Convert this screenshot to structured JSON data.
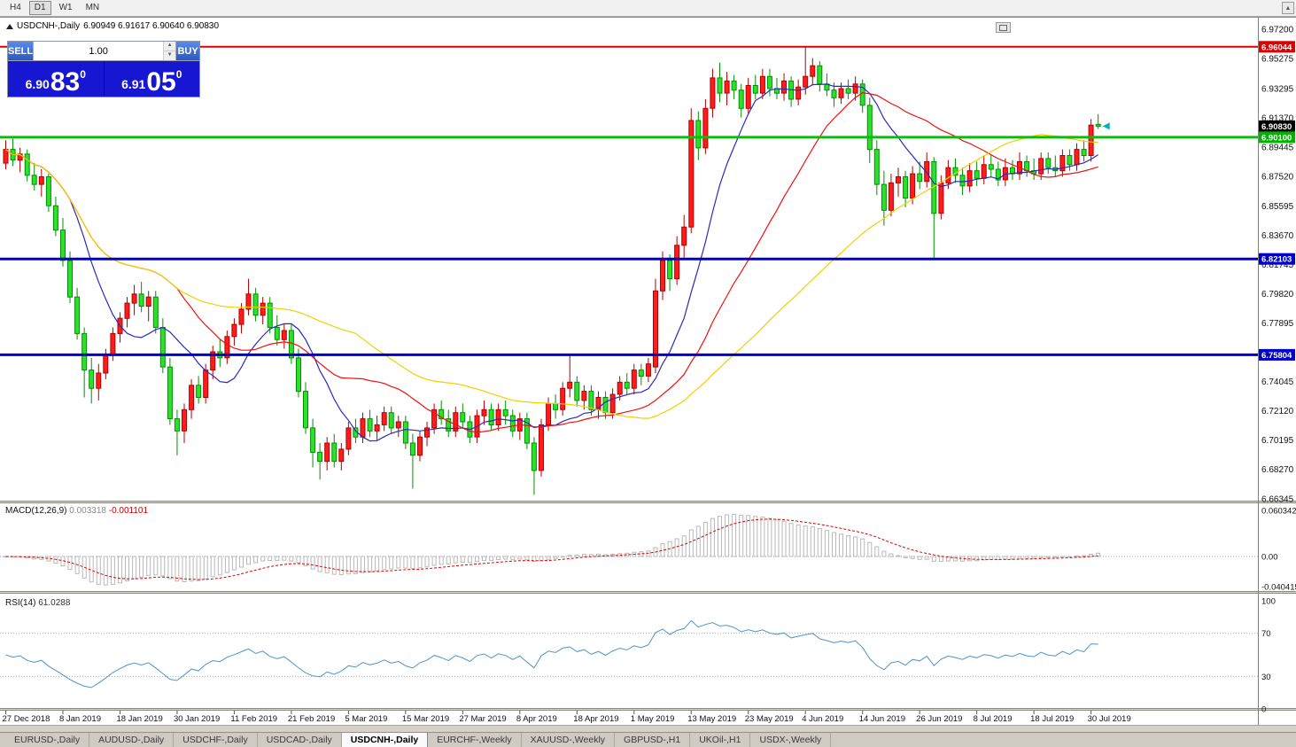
{
  "icons": {
    "scroll_up": "▲",
    "spinner_up": "▲",
    "spinner_down": "▼"
  },
  "toolbar": {
    "timeframes": [
      {
        "label": "H4",
        "active": false
      },
      {
        "label": "D1",
        "active": true
      },
      {
        "label": "W1",
        "active": false
      },
      {
        "label": "MN",
        "active": false
      }
    ]
  },
  "chart_window": {
    "title_symbol": "USDCNH-,Daily",
    "title_ohlc": "6.90949 6.91617 6.90640 6.90830"
  },
  "one_click": {
    "sell_label": "SELL",
    "buy_label": "BUY",
    "volume": "1.00",
    "sell_price": {
      "base": "6.90",
      "big": "83",
      "sup": "0"
    },
    "buy_price": {
      "base": "6.91",
      "big": "05",
      "sup": "0"
    }
  },
  "price_tags": [
    {
      "value": "6.96044",
      "color": "#dd0000"
    },
    {
      "value": "6.90830",
      "color": "#000000"
    },
    {
      "value": "6.90100",
      "color": "#00b300"
    },
    {
      "value": "6.82103",
      "color": "#0000cc"
    },
    {
      "value": "6.75804",
      "color": "#0000cc"
    }
  ],
  "chart_data": {
    "type": "candlestick",
    "symbol": "USDCNH",
    "period": "Daily",
    "ylim": [
      6.66345,
      6.972
    ],
    "up_color": "#ff1c1c",
    "down_color": "#2ee02e",
    "up_border": "#b00000",
    "down_border": "#009000",
    "y_axis_ticks": [
      "6.97200",
      "6.95275",
      "6.93295",
      "6.91370",
      "6.89445",
      "6.87520",
      "6.85595",
      "6.83670",
      "6.81745",
      "6.79820",
      "6.77895",
      "6.75970",
      "6.74045",
      "6.72120",
      "6.70195",
      "6.68270",
      "6.66345"
    ],
    "x_labels": [
      "27 Dec 2018",
      "8 Jan 2019",
      "18 Jan 2019",
      "30 Jan 2019",
      "11 Feb 2019",
      "21 Feb 2019",
      "5 Mar 2019",
      "15 Mar 2019",
      "27 Mar 2019",
      "8 Apr 2019",
      "18 Apr 2019",
      "1 May 2019",
      "13 May 2019",
      "23 May 2019",
      "4 Jun 2019",
      "14 Jun 2019",
      "26 Jun 2019",
      "8 Jul 2019",
      "18 Jul 2019",
      "30 Jul 2019"
    ],
    "x_label_step": 8,
    "hlines": [
      {
        "price": 6.96044,
        "color": "#dd0000",
        "width": 2
      },
      {
        "price": 6.901,
        "color": "#00c400",
        "width": 3
      },
      {
        "price": 6.82103,
        "color": "#0000cc",
        "width": 3
      },
      {
        "price": 6.75804,
        "color": "#0000cc",
        "width": 3
      }
    ],
    "current_price": 6.9083,
    "moving_averages": [
      {
        "period": 10,
        "color": "#2a2ac0"
      },
      {
        "period": 25,
        "color": "#ee1111"
      },
      {
        "period": 50,
        "color": "#f2d000"
      }
    ],
    "macd": {
      "label": "MACD(12,26,9)",
      "value": "0.003318",
      "signal_value": "-0.001101",
      "fast": 12,
      "slow": 26,
      "signal": 9,
      "axis_labels": [
        "0.060342",
        "0.00",
        "-0.040415"
      ],
      "histogram_color": "#b9b9b9",
      "signal_color": "#dd0000"
    },
    "rsi": {
      "label": "RSI(14)",
      "value": "61.0288",
      "period": 14,
      "levels": [
        70,
        30
      ],
      "axis_labels": [
        "100",
        "70",
        "30",
        "0"
      ],
      "line_color": "#4f94cd"
    },
    "candles_ohlc": [
      [
        6.884,
        6.899,
        6.88,
        6.893
      ],
      [
        6.893,
        6.9,
        6.882,
        6.886
      ],
      [
        6.886,
        6.894,
        6.878,
        6.89
      ],
      [
        6.89,
        6.893,
        6.872,
        6.876
      ],
      [
        6.876,
        6.884,
        6.866,
        6.87
      ],
      [
        6.87,
        6.88,
        6.862,
        6.875
      ],
      [
        6.875,
        6.877,
        6.852,
        6.856
      ],
      [
        6.856,
        6.862,
        6.836,
        6.84
      ],
      [
        6.84,
        6.848,
        6.816,
        6.82
      ],
      [
        6.82,
        6.826,
        6.792,
        6.796
      ],
      [
        6.796,
        6.802,
        6.768,
        6.772
      ],
      [
        6.772,
        6.776,
        6.73,
        6.748
      ],
      [
        6.748,
        6.756,
        6.726,
        6.736
      ],
      [
        6.736,
        6.752,
        6.728,
        6.746
      ],
      [
        6.746,
        6.762,
        6.742,
        6.758
      ],
      [
        6.758,
        6.776,
        6.754,
        6.772
      ],
      [
        6.772,
        6.786,
        6.766,
        6.782
      ],
      [
        6.782,
        6.796,
        6.776,
        6.792
      ],
      [
        6.792,
        6.804,
        6.784,
        6.798
      ],
      [
        6.798,
        6.806,
        6.786,
        6.79
      ],
      [
        6.79,
        6.8,
        6.78,
        6.796
      ],
      [
        6.796,
        6.8,
        6.772,
        6.776
      ],
      [
        6.776,
        6.782,
        6.746,
        6.75
      ],
      [
        6.75,
        6.756,
        6.712,
        6.716
      ],
      [
        6.716,
        6.722,
        6.692,
        6.708
      ],
      [
        6.708,
        6.726,
        6.7,
        6.722
      ],
      [
        6.722,
        6.742,
        6.716,
        6.738
      ],
      [
        6.738,
        6.744,
        6.726,
        6.73
      ],
      [
        6.73,
        6.752,
        6.726,
        6.748
      ],
      [
        6.748,
        6.764,
        6.742,
        6.76
      ],
      [
        6.76,
        6.768,
        6.75,
        6.756
      ],
      [
        6.756,
        6.774,
        6.752,
        6.77
      ],
      [
        6.77,
        6.782,
        6.764,
        6.778
      ],
      [
        6.778,
        6.792,
        6.772,
        6.788
      ],
      [
        6.788,
        6.808,
        6.784,
        6.798
      ],
      [
        6.798,
        6.802,
        6.78,
        6.784
      ],
      [
        6.784,
        6.796,
        6.778,
        6.792
      ],
      [
        6.792,
        6.796,
        6.772,
        6.776
      ],
      [
        6.776,
        6.784,
        6.764,
        6.768
      ],
      [
        6.768,
        6.778,
        6.762,
        6.774
      ],
      [
        6.774,
        6.778,
        6.752,
        6.756
      ],
      [
        6.756,
        6.762,
        6.73,
        6.734
      ],
      [
        6.734,
        6.74,
        6.706,
        6.71
      ],
      [
        6.71,
        6.716,
        6.684,
        6.694
      ],
      [
        6.694,
        6.7,
        6.676,
        6.688
      ],
      [
        6.688,
        6.704,
        6.682,
        6.7
      ],
      [
        6.7,
        6.706,
        6.684,
        6.688
      ],
      [
        6.688,
        6.7,
        6.682,
        6.696
      ],
      [
        6.696,
        6.714,
        6.692,
        6.71
      ],
      [
        6.71,
        6.716,
        6.7,
        6.704
      ],
      [
        6.704,
        6.72,
        6.7,
        6.716
      ],
      [
        6.716,
        6.722,
        6.704,
        6.708
      ],
      [
        6.708,
        6.718,
        6.702,
        6.712
      ],
      [
        6.712,
        6.724,
        6.708,
        6.72
      ],
      [
        6.72,
        6.724,
        6.706,
        6.71
      ],
      [
        6.71,
        6.718,
        6.704,
        6.714
      ],
      [
        6.714,
        6.718,
        6.696,
        6.7
      ],
      [
        6.7,
        6.706,
        6.67,
        6.692
      ],
      [
        6.692,
        6.708,
        6.688,
        6.704
      ],
      [
        6.704,
        6.714,
        6.698,
        6.71
      ],
      [
        6.71,
        6.726,
        6.706,
        6.722
      ],
      [
        6.722,
        6.728,
        6.712,
        6.716
      ],
      [
        6.716,
        6.722,
        6.704,
        6.708
      ],
      [
        6.708,
        6.724,
        6.704,
        6.72
      ],
      [
        6.72,
        6.726,
        6.71,
        6.714
      ],
      [
        6.714,
        6.718,
        6.7,
        6.704
      ],
      [
        6.704,
        6.722,
        6.7,
        6.718
      ],
      [
        6.718,
        6.728,
        6.712,
        6.722
      ],
      [
        6.722,
        6.726,
        6.708,
        6.712
      ],
      [
        6.712,
        6.726,
        6.708,
        6.722
      ],
      [
        6.722,
        6.728,
        6.712,
        6.718
      ],
      [
        6.718,
        6.722,
        6.704,
        6.708
      ],
      [
        6.708,
        6.72,
        6.702,
        6.716
      ],
      [
        6.716,
        6.72,
        6.696,
        6.7
      ],
      [
        6.7,
        6.704,
        6.666,
        6.682
      ],
      [
        6.682,
        6.716,
        6.678,
        6.712
      ],
      [
        6.712,
        6.73,
        6.708,
        6.726
      ],
      [
        6.726,
        6.732,
        6.716,
        6.722
      ],
      [
        6.722,
        6.74,
        6.718,
        6.736
      ],
      [
        6.736,
        6.758,
        6.73,
        6.74
      ],
      [
        6.74,
        6.744,
        6.724,
        6.728
      ],
      [
        6.728,
        6.738,
        6.722,
        6.734
      ],
      [
        6.734,
        6.738,
        6.718,
        6.722
      ],
      [
        6.722,
        6.734,
        6.716,
        6.73
      ],
      [
        6.73,
        6.734,
        6.716,
        6.72
      ],
      [
        6.72,
        6.736,
        6.716,
        6.732
      ],
      [
        6.732,
        6.744,
        6.728,
        6.74
      ],
      [
        6.74,
        6.746,
        6.732,
        6.736
      ],
      [
        6.736,
        6.752,
        6.732,
        6.748
      ],
      [
        6.748,
        6.752,
        6.738,
        6.744
      ],
      [
        6.744,
        6.756,
        6.74,
        6.752
      ],
      [
        6.75,
        6.808,
        6.746,
        6.8
      ],
      [
        6.8,
        6.826,
        6.794,
        6.82
      ],
      [
        6.82,
        6.824,
        6.8,
        6.808
      ],
      [
        6.808,
        6.836,
        6.804,
        6.83
      ],
      [
        6.83,
        6.85,
        6.822,
        6.842
      ],
      [
        6.842,
        6.92,
        6.838,
        6.912
      ],
      [
        6.912,
        6.918,
        6.886,
        6.894
      ],
      [
        6.894,
        6.926,
        6.89,
        6.92
      ],
      [
        6.92,
        6.946,
        6.914,
        6.94
      ],
      [
        6.94,
        6.95,
        6.924,
        6.93
      ],
      [
        6.93,
        6.944,
        6.922,
        6.938
      ],
      [
        6.938,
        6.942,
        6.926,
        6.932
      ],
      [
        6.932,
        6.936,
        6.914,
        6.92
      ],
      [
        6.92,
        6.94,
        6.916,
        6.935
      ],
      [
        6.935,
        6.942,
        6.926,
        6.93
      ],
      [
        6.93,
        6.946,
        6.926,
        6.941
      ],
      [
        6.941,
        6.946,
        6.928,
        6.933
      ],
      [
        6.933,
        6.94,
        6.926,
        6.93
      ],
      [
        6.93,
        6.943,
        6.925,
        6.938
      ],
      [
        6.938,
        6.941,
        6.921,
        6.926
      ],
      [
        6.926,
        6.939,
        6.922,
        6.934
      ],
      [
        6.934,
        6.961,
        6.929,
        6.941
      ],
      [
        6.941,
        6.953,
        6.935,
        6.948
      ],
      [
        6.948,
        6.951,
        6.931,
        6.936
      ],
      [
        6.936,
        6.943,
        6.928,
        6.932
      ],
      [
        6.932,
        6.937,
        6.921,
        6.927
      ],
      [
        6.927,
        6.937,
        6.923,
        6.933
      ],
      [
        6.933,
        6.939,
        6.926,
        6.93
      ],
      [
        6.93,
        6.941,
        6.925,
        6.936
      ],
      [
        6.936,
        6.939,
        6.917,
        6.922
      ],
      [
        6.922,
        6.927,
        6.884,
        6.893
      ],
      [
        6.893,
        6.899,
        6.863,
        6.87
      ],
      [
        6.87,
        6.879,
        6.843,
        6.853
      ],
      [
        6.853,
        6.877,
        6.849,
        6.871
      ],
      [
        6.871,
        6.881,
        6.862,
        6.875
      ],
      [
        6.875,
        6.879,
        6.855,
        6.861
      ],
      [
        6.861,
        6.882,
        6.857,
        6.877
      ],
      [
        6.877,
        6.885,
        6.867,
        6.872
      ],
      [
        6.872,
        6.891,
        6.868,
        6.885
      ],
      [
        6.885,
        6.888,
        6.821,
        6.851
      ],
      [
        6.851,
        6.876,
        6.847,
        6.871
      ],
      [
        6.871,
        6.886,
        6.867,
        6.881
      ],
      [
        6.881,
        6.887,
        6.871,
        6.876
      ],
      [
        6.876,
        6.881,
        6.863,
        6.869
      ],
      [
        6.869,
        6.884,
        6.865,
        6.879
      ],
      [
        6.879,
        6.885,
        6.869,
        6.874
      ],
      [
        6.874,
        6.889,
        6.87,
        6.883
      ],
      [
        6.883,
        6.889,
        6.875,
        6.88
      ],
      [
        6.88,
        6.885,
        6.869,
        6.873
      ],
      [
        6.873,
        6.887,
        6.869,
        6.881
      ],
      [
        6.881,
        6.886,
        6.873,
        6.877
      ],
      [
        6.877,
        6.891,
        6.873,
        6.885
      ],
      [
        6.885,
        6.889,
        6.875,
        6.879
      ],
      [
        6.879,
        6.887,
        6.873,
        6.877
      ],
      [
        6.877,
        6.891,
        6.873,
        6.887
      ],
      [
        6.887,
        6.891,
        6.877,
        6.881
      ],
      [
        6.881,
        6.889,
        6.875,
        6.879
      ],
      [
        6.879,
        6.893,
        6.875,
        6.889
      ],
      [
        6.889,
        6.893,
        6.879,
        6.883
      ],
      [
        6.883,
        6.897,
        6.879,
        6.893
      ],
      [
        6.893,
        6.899,
        6.885,
        6.889
      ],
      [
        6.889,
        6.913,
        6.885,
        6.909
      ],
      [
        6.9095,
        6.9162,
        6.9064,
        6.9083
      ]
    ]
  },
  "tabs": [
    {
      "label": "EURUSD-,Daily",
      "active": false
    },
    {
      "label": "AUDUSD-,Daily",
      "active": false
    },
    {
      "label": "USDCHF-,Daily",
      "active": false
    },
    {
      "label": "USDCAD-,Daily",
      "active": false
    },
    {
      "label": "USDCNH-,Daily",
      "active": true
    },
    {
      "label": "EURCHF-,Weekly",
      "active": false
    },
    {
      "label": "XAUUSD-,Weekly",
      "active": false
    },
    {
      "label": "GBPUSD-,H1",
      "active": false
    },
    {
      "label": "UKOil-,H1",
      "active": false
    },
    {
      "label": "USDX-,Weekly",
      "active": false
    }
  ]
}
